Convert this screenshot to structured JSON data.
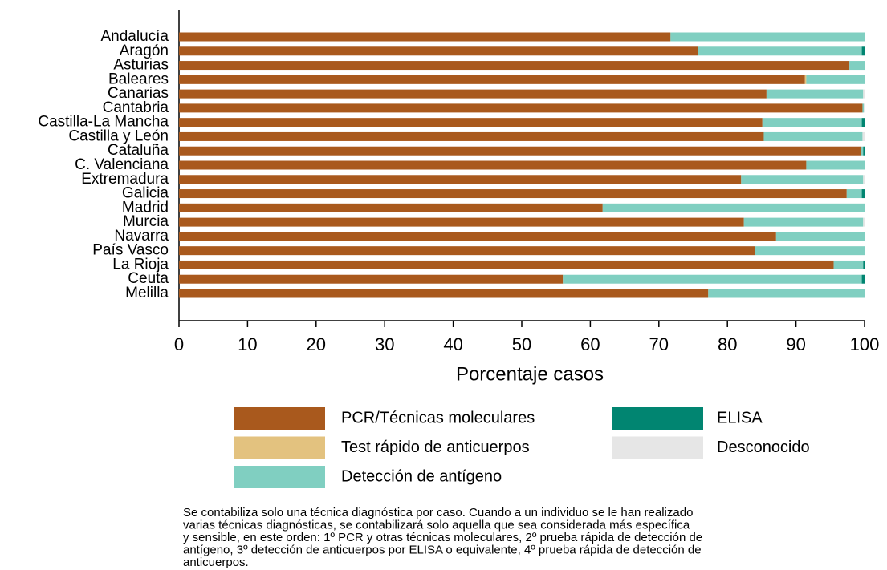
{
  "chart_data": {
    "type": "hbar_stacked",
    "categories": [
      "Andalucía",
      "Aragón",
      "Asturias",
      "Baleares",
      "Canarias",
      "Cantabria",
      "Castilla-La Mancha",
      "Castilla y León",
      "Cataluña",
      "C. Valenciana",
      "Extremadura",
      "Galicia",
      "Madrid",
      "Murcia",
      "Navarra",
      "País Vasco",
      "La Rioja",
      "Ceuta",
      "Melilla"
    ],
    "series": [
      {
        "name": "PCR/Técnicas moleculares",
        "color": "#a9591d",
        "values": [
          71.7,
          75.7,
          97.8,
          91.3,
          85.7,
          99.7,
          85.1,
          85.3,
          99.5,
          91.5,
          82.0,
          97.4,
          61.8,
          82.4,
          87.1,
          84.0,
          95.5,
          56.0,
          77.2
        ]
      },
      {
        "name": "Test rápido de anticuerpos",
        "color": "#e3c27f",
        "values": [
          0,
          0,
          0,
          0.2,
          0,
          0,
          0,
          0,
          0,
          0,
          0,
          0,
          0,
          0,
          0,
          0,
          0,
          0,
          0
        ]
      },
      {
        "name": "Detección de antígeno",
        "color": "#80cfc1",
        "values": [
          28.3,
          23.9,
          2.2,
          8.5,
          14.1,
          0.2,
          14.5,
          14.4,
          0.3,
          8.5,
          17.8,
          2.2,
          38.2,
          17.4,
          12.9,
          16.0,
          4.3,
          43.6,
          22.8
        ]
      },
      {
        "name": "ELISA",
        "color": "#018571",
        "values": [
          0,
          0.4,
          0,
          0,
          0,
          0,
          0.4,
          0,
          0.2,
          0,
          0,
          0.4,
          0,
          0,
          0,
          0,
          0.2,
          0.4,
          0
        ]
      },
      {
        "name": "Desconocido",
        "color": "#e6e6e6",
        "values": [
          0,
          0,
          0,
          0,
          0.2,
          0.1,
          0,
          0.3,
          0,
          0,
          0.2,
          0,
          0,
          0.2,
          0,
          0,
          0,
          0,
          0
        ]
      }
    ],
    "xlabel": "Porcentaje casos",
    "xlim": [
      0,
      100
    ],
    "xticks": [
      0,
      10,
      20,
      30,
      40,
      50,
      60,
      70,
      80,
      90,
      100
    ],
    "grid": false,
    "legend": "bottom",
    "note": [
      "Se contabiliza solo una técnica diagnóstica por caso. Cuando a un individuo se le han realizado",
      "varias técnicas diagnósticas, se contabilizará solo aquella que sea considerada más específica",
      "y sensible, en este orden: 1º PCR y otras técnicas moleculares, 2º prueba rápida de detección de",
      "antígeno, 3º detección de anticuerpos por ELISA o equivalente, 4º prueba rápida de detección de",
      "anticuerpos."
    ]
  }
}
